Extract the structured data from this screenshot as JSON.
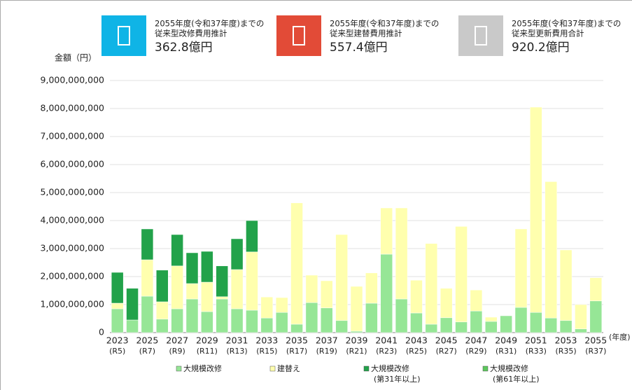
{
  "header": {
    "cards": [
      {
        "line1": "2055年度(令和37年度)までの",
        "line2": "従来型改修費用推計",
        "amount": "362.8億円",
        "color": "#0fb4e6"
      },
      {
        "line1": "2055年度(令和37年度)までの",
        "line2": "従来型建替費用推計",
        "amount": "557.4億円",
        "color": "#e24b37"
      },
      {
        "line1": "2055年度(令和37年度)までの",
        "line2": "従来型更新費用合計",
        "amount": "920.2億円",
        "color": "#c9c9c9"
      }
    ]
  },
  "chart_data": {
    "type": "stacked_bar",
    "y_label": "金額（円）",
    "x_unit": "(年度)",
    "categories": [
      "2023",
      null,
      "2025",
      null,
      "2027",
      null,
      "2029",
      null,
      "2031",
      null,
      "2033",
      null,
      "2035",
      null,
      "2037",
      null,
      "2039",
      null,
      "2041",
      null,
      "2043",
      null,
      "2045",
      null,
      "2047",
      null,
      "2049",
      null,
      "2051",
      null,
      "2053",
      null,
      "2055"
    ],
    "era_labels": [
      "(R5)",
      null,
      "(R7)",
      null,
      "(R9)",
      null,
      "(R11)",
      null,
      "(R13)",
      null,
      "(R15)",
      null,
      "(R17)",
      null,
      "(R19)",
      null,
      "(R21)",
      null,
      "(R23)",
      null,
      "(R25)",
      null,
      "(R27)",
      null,
      "(R29)",
      null,
      "(R31)",
      null,
      "(R33)",
      null,
      "(R35)",
      null,
      "(R37)"
    ],
    "series": [
      {
        "name": "大規模改修",
        "color": "#96e696",
        "values": [
          850000000,
          450000000,
          1300000000,
          480000000,
          850000000,
          1200000000,
          750000000,
          1200000000,
          850000000,
          800000000,
          520000000,
          720000000,
          300000000,
          1070000000,
          880000000,
          430000000,
          50000000,
          1050000000,
          2800000000,
          1200000000,
          700000000,
          300000000,
          530000000,
          380000000,
          770000000,
          400000000,
          600000000,
          900000000,
          720000000,
          520000000,
          430000000,
          130000000,
          1130000000
        ]
      },
      {
        "name": "建替え",
        "color": "#ffffae",
        "values": [
          200000000,
          0,
          1300000000,
          620000000,
          1530000000,
          550000000,
          1050000000,
          80000000,
          1400000000,
          2080000000,
          750000000,
          530000000,
          4330000000,
          980000000,
          970000000,
          3070000000,
          1600000000,
          1080000000,
          1650000000,
          3250000000,
          1170000000,
          2880000000,
          1050000000,
          3410000000,
          750000000,
          150000000,
          0,
          2800000000,
          7330000000,
          4870000000,
          2520000000,
          870000000,
          830000000
        ]
      },
      {
        "name": "大規模改修\n(第31年以上)",
        "color": "#22a24a",
        "values": [
          1100000000,
          1130000000,
          1100000000,
          1130000000,
          1120000000,
          1100000000,
          1100000000,
          1100000000,
          1100000000,
          1120000000,
          0,
          0,
          0,
          0,
          0,
          0,
          0,
          0,
          0,
          0,
          0,
          0,
          0,
          0,
          0,
          0,
          0,
          0,
          0,
          0,
          0,
          0,
          0
        ]
      },
      {
        "name": "大規模改修\n(第61年以上)",
        "color": "#5cc85c",
        "values": [
          0,
          0,
          0,
          0,
          0,
          0,
          0,
          0,
          0,
          0,
          0,
          0,
          0,
          0,
          0,
          0,
          0,
          0,
          0,
          0,
          0,
          0,
          0,
          0,
          0,
          0,
          0,
          0,
          0,
          0,
          0,
          0,
          0
        ]
      }
    ],
    "ylim": [
      0,
      9000000000
    ],
    "yticks": [
      0,
      {
        "value": 1000000000,
        "label": "1,000,000,000"
      },
      {
        "value": 2000000000,
        "label": "2,000,000,000"
      },
      {
        "value": 3000000000,
        "label": "3,000,000,000"
      },
      {
        "value": 4000000000,
        "label": "4,000,000,000"
      },
      {
        "value": 5000000000,
        "label": "5,000,000,000"
      },
      {
        "value": 6000000000,
        "label": "6,000,000,000"
      },
      {
        "value": 7000000000,
        "label": "7,000,000,000"
      },
      {
        "value": 8000000000,
        "label": "8,000,000,000"
      },
      {
        "value": 9000000000,
        "label": "9,000,000,000"
      }
    ],
    "grid": true
  }
}
